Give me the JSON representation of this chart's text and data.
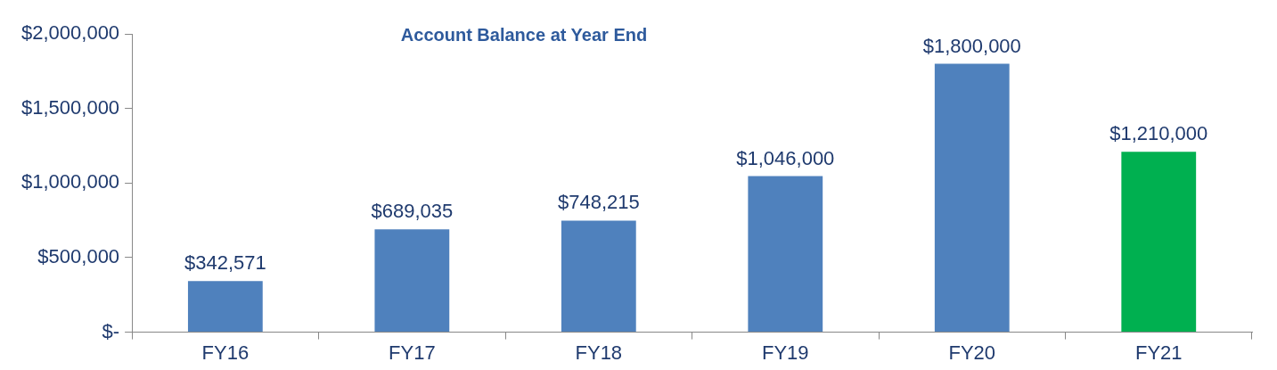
{
  "chart_data": {
    "type": "bar",
    "title": "Account Balance at Year End",
    "categories": [
      "FY16",
      "FY17",
      "FY18",
      "FY19",
      "FY20",
      "FY21"
    ],
    "values": [
      342571,
      689035,
      748215,
      1046000,
      1800000,
      1210000
    ],
    "colors": [
      "#4f81bd",
      "#4f81bd",
      "#4f81bd",
      "#4f81bd",
      "#4f81bd",
      "#00b050"
    ],
    "value_labels": [
      "$342,571",
      "$689,035",
      "$748,215",
      "$1,046,000",
      "$1,800,000",
      "$1,210,000"
    ],
    "ylim": [
      0,
      2000000
    ],
    "yticks": [
      {
        "value": 0,
        "label": "$-"
      },
      {
        "value": 500000,
        "label": "$500,000"
      },
      {
        "value": 1000000,
        "label": "$1,000,000"
      },
      {
        "value": 1500000,
        "label": "$1,500,000"
      },
      {
        "value": 2000000,
        "label": "$2,000,000"
      }
    ],
    "grid": false,
    "legend": false
  }
}
